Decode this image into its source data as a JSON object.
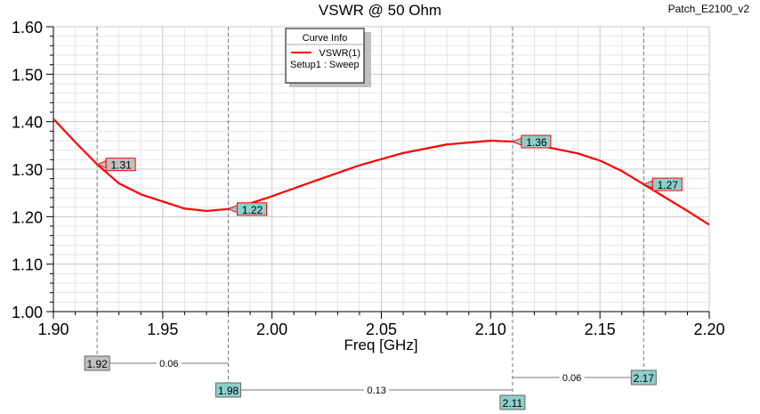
{
  "chart_data": {
    "type": "line",
    "title": "VSWR @ 50 Ohm",
    "project_label": "Patch_E2100_v2",
    "xlabel": "Freq [GHz]",
    "ylabel": "",
    "xlim": [
      1.9,
      2.2
    ],
    "ylim": [
      1.0,
      1.6
    ],
    "x_ticks": [
      "1.90",
      "1.95",
      "2.00",
      "2.05",
      "2.10",
      "2.15",
      "2.20"
    ],
    "y_ticks": [
      "1.00",
      "1.10",
      "1.20",
      "1.30",
      "1.40",
      "1.50",
      "1.60"
    ],
    "grid": true,
    "legend": {
      "title": "Curve Info",
      "entries": [
        {
          "name": "VSWR(1)",
          "sub": "Setup1 : Sweep",
          "color": "#ff0000"
        }
      ],
      "placement": "top-center"
    },
    "series": [
      {
        "name": "VSWR(1)",
        "color": "#ff0000",
        "x": [
          1.9,
          1.91,
          1.92,
          1.93,
          1.94,
          1.95,
          1.96,
          1.97,
          1.98,
          1.99,
          2.0,
          2.02,
          2.04,
          2.06,
          2.08,
          2.1,
          2.11,
          2.12,
          2.14,
          2.15,
          2.16,
          2.17,
          2.18,
          2.19,
          2.2
        ],
        "y": [
          1.406,
          1.357,
          1.31,
          1.27,
          1.247,
          1.232,
          1.217,
          1.212,
          1.216,
          1.228,
          1.243,
          1.276,
          1.308,
          1.334,
          1.352,
          1.36,
          1.358,
          1.352,
          1.333,
          1.318,
          1.296,
          1.268,
          1.24,
          1.212,
          1.183
        ]
      }
    ],
    "markers": [
      {
        "label": "1.31",
        "x": 1.92,
        "y": 1.31,
        "style": "gray",
        "x_label": "1.92"
      },
      {
        "label": "1.22",
        "x": 1.98,
        "y": 1.216,
        "style": "teal",
        "x_label": "1.98"
      },
      {
        "label": "1.36",
        "x": 2.11,
        "y": 1.358,
        "style": "teal",
        "x_label": "2.11"
      },
      {
        "label": "1.27",
        "x": 2.17,
        "y": 1.268,
        "style": "teal",
        "x_label": "2.17"
      }
    ],
    "deltas": [
      {
        "from": 1.92,
        "to": 1.98,
        "label": "0.06",
        "row": 0
      },
      {
        "from": 1.98,
        "to": 2.11,
        "label": "0.13",
        "row": 1
      },
      {
        "from": 2.11,
        "to": 2.17,
        "label": "0.06",
        "row": 0.5
      }
    ]
  }
}
